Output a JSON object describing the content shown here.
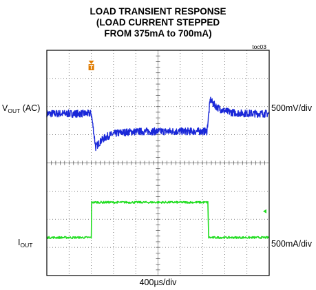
{
  "title": {
    "line1": "LOAD TRANSIENT RESPONSE",
    "line2": "(LOAD CURRENT STEPPED",
    "line3": "FROM 375mA to 700mA)"
  },
  "figure_id": "toc03",
  "channels": {
    "ch1": {
      "name": "V",
      "sub": "OUT",
      "suffix": " (AC)",
      "scale": "500mV/div",
      "color": "#1a28d8"
    },
    "ch2": {
      "name": "I",
      "sub": "OUT",
      "suffix": "",
      "scale": "500mA/div",
      "color": "#22dd22"
    }
  },
  "time_scale": "400µs/div",
  "colors": {
    "trigger": "#e07b00",
    "grid": "#555555",
    "frame": "#000000"
  },
  "chart_data": {
    "type": "line",
    "title": "LOAD TRANSIENT RESPONSE (LOAD CURRENT STEPPED FROM 375mA to 700mA)",
    "xlabel": "400µs/div",
    "x_divisions": 10,
    "y_divisions": 8,
    "series": [
      {
        "name": "VOUT (AC)",
        "scale": "500mV/div",
        "points_div": [
          [
            0,
            5.75
          ],
          [
            2.0,
            5.75
          ],
          [
            2.2,
            4.55
          ],
          [
            2.6,
            4.9
          ],
          [
            4.0,
            5.1
          ],
          [
            7.2,
            5.15
          ],
          [
            7.35,
            6.25
          ],
          [
            8.2,
            5.85
          ],
          [
            10,
            5.75
          ]
        ]
      },
      {
        "name": "IOUT",
        "scale": "500mA/div",
        "points_div": [
          [
            0,
            1.35
          ],
          [
            2.0,
            1.35
          ],
          [
            2.02,
            2.6
          ],
          [
            7.25,
            2.6
          ],
          [
            7.27,
            1.35
          ],
          [
            10,
            1.35
          ]
        ]
      }
    ]
  }
}
